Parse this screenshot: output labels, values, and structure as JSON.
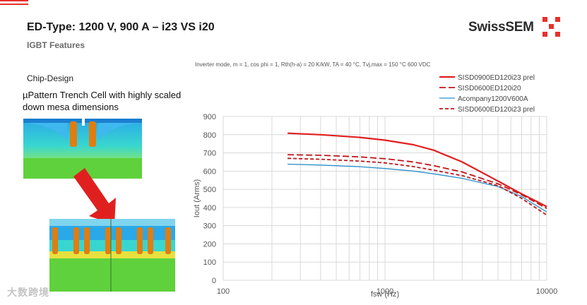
{
  "header": {
    "title": "ED-Type: 1200 V, 900 A – i23 VS i20",
    "subtitle": "IGBT Features",
    "brand": "SwissSEM"
  },
  "left_panel": {
    "heading": "Chip-Design",
    "description": "µPattern Trench Cell with highly scaled down mesa dimensions"
  },
  "conditions": "Inverter mode, m = 1, cos phi = 1, Rth(h-a) = 20 K/kW, TA = 40 °C, Tvj,max = 150 °C 600 VDC",
  "watermark": "大数跨境",
  "colors": {
    "accent": "#e8302c",
    "series_red": "#e0201e",
    "series_dark_red": "#c0151a",
    "series_blue": "#2a8fc8"
  },
  "chart_data": {
    "type": "line",
    "xlabel": "fsw (Hz)",
    "ylabel": "Iout (Arms)",
    "xscale": "log",
    "xlim": [
      100,
      10000
    ],
    "ylim": [
      0,
      900
    ],
    "xticks": [
      "100",
      "1000",
      "10000"
    ],
    "yticks": [
      "0",
      "100",
      "200",
      "300",
      "400",
      "500",
      "600",
      "700",
      "800",
      "900"
    ],
    "grid": true,
    "legend_position": "top-right",
    "series": [
      {
        "name": "SISD0900ED120i23 prel",
        "color": "#e0201e",
        "style": "solid",
        "width": 2.2,
        "x": [
          250,
          400,
          700,
          1000,
          1500,
          2000,
          3000,
          5000,
          7000,
          10000
        ],
        "y": [
          808,
          800,
          785,
          770,
          745,
          715,
          650,
          545,
          475,
          405
        ]
      },
      {
        "name": "SISD0600ED120i20",
        "color": "#c0151a",
        "style": "longdash",
        "width": 1.8,
        "x": [
          250,
          400,
          700,
          1000,
          1500,
          2000,
          3000,
          5000,
          7000,
          10000
        ],
        "y": [
          690,
          687,
          678,
          668,
          650,
          630,
          595,
          530,
          470,
          395
        ]
      },
      {
        "name": "Acompany1200V600A",
        "color": "#2a8fc8",
        "style": "solid",
        "width": 1.3,
        "x": [
          250,
          400,
          700,
          1000,
          1500,
          2000,
          3000,
          5000,
          7000,
          10000
        ],
        "y": [
          638,
          633,
          624,
          614,
          600,
          585,
          560,
          515,
          460,
          375
        ]
      },
      {
        "name": "SISD0600ED120i23 prel",
        "color": "#c0151a",
        "style": "shortdash",
        "width": 1.8,
        "x": [
          250,
          400,
          700,
          1000,
          1500,
          2000,
          3000,
          5000,
          7000,
          10000
        ],
        "y": [
          670,
          665,
          655,
          645,
          625,
          605,
          575,
          520,
          450,
          358
        ]
      }
    ]
  }
}
